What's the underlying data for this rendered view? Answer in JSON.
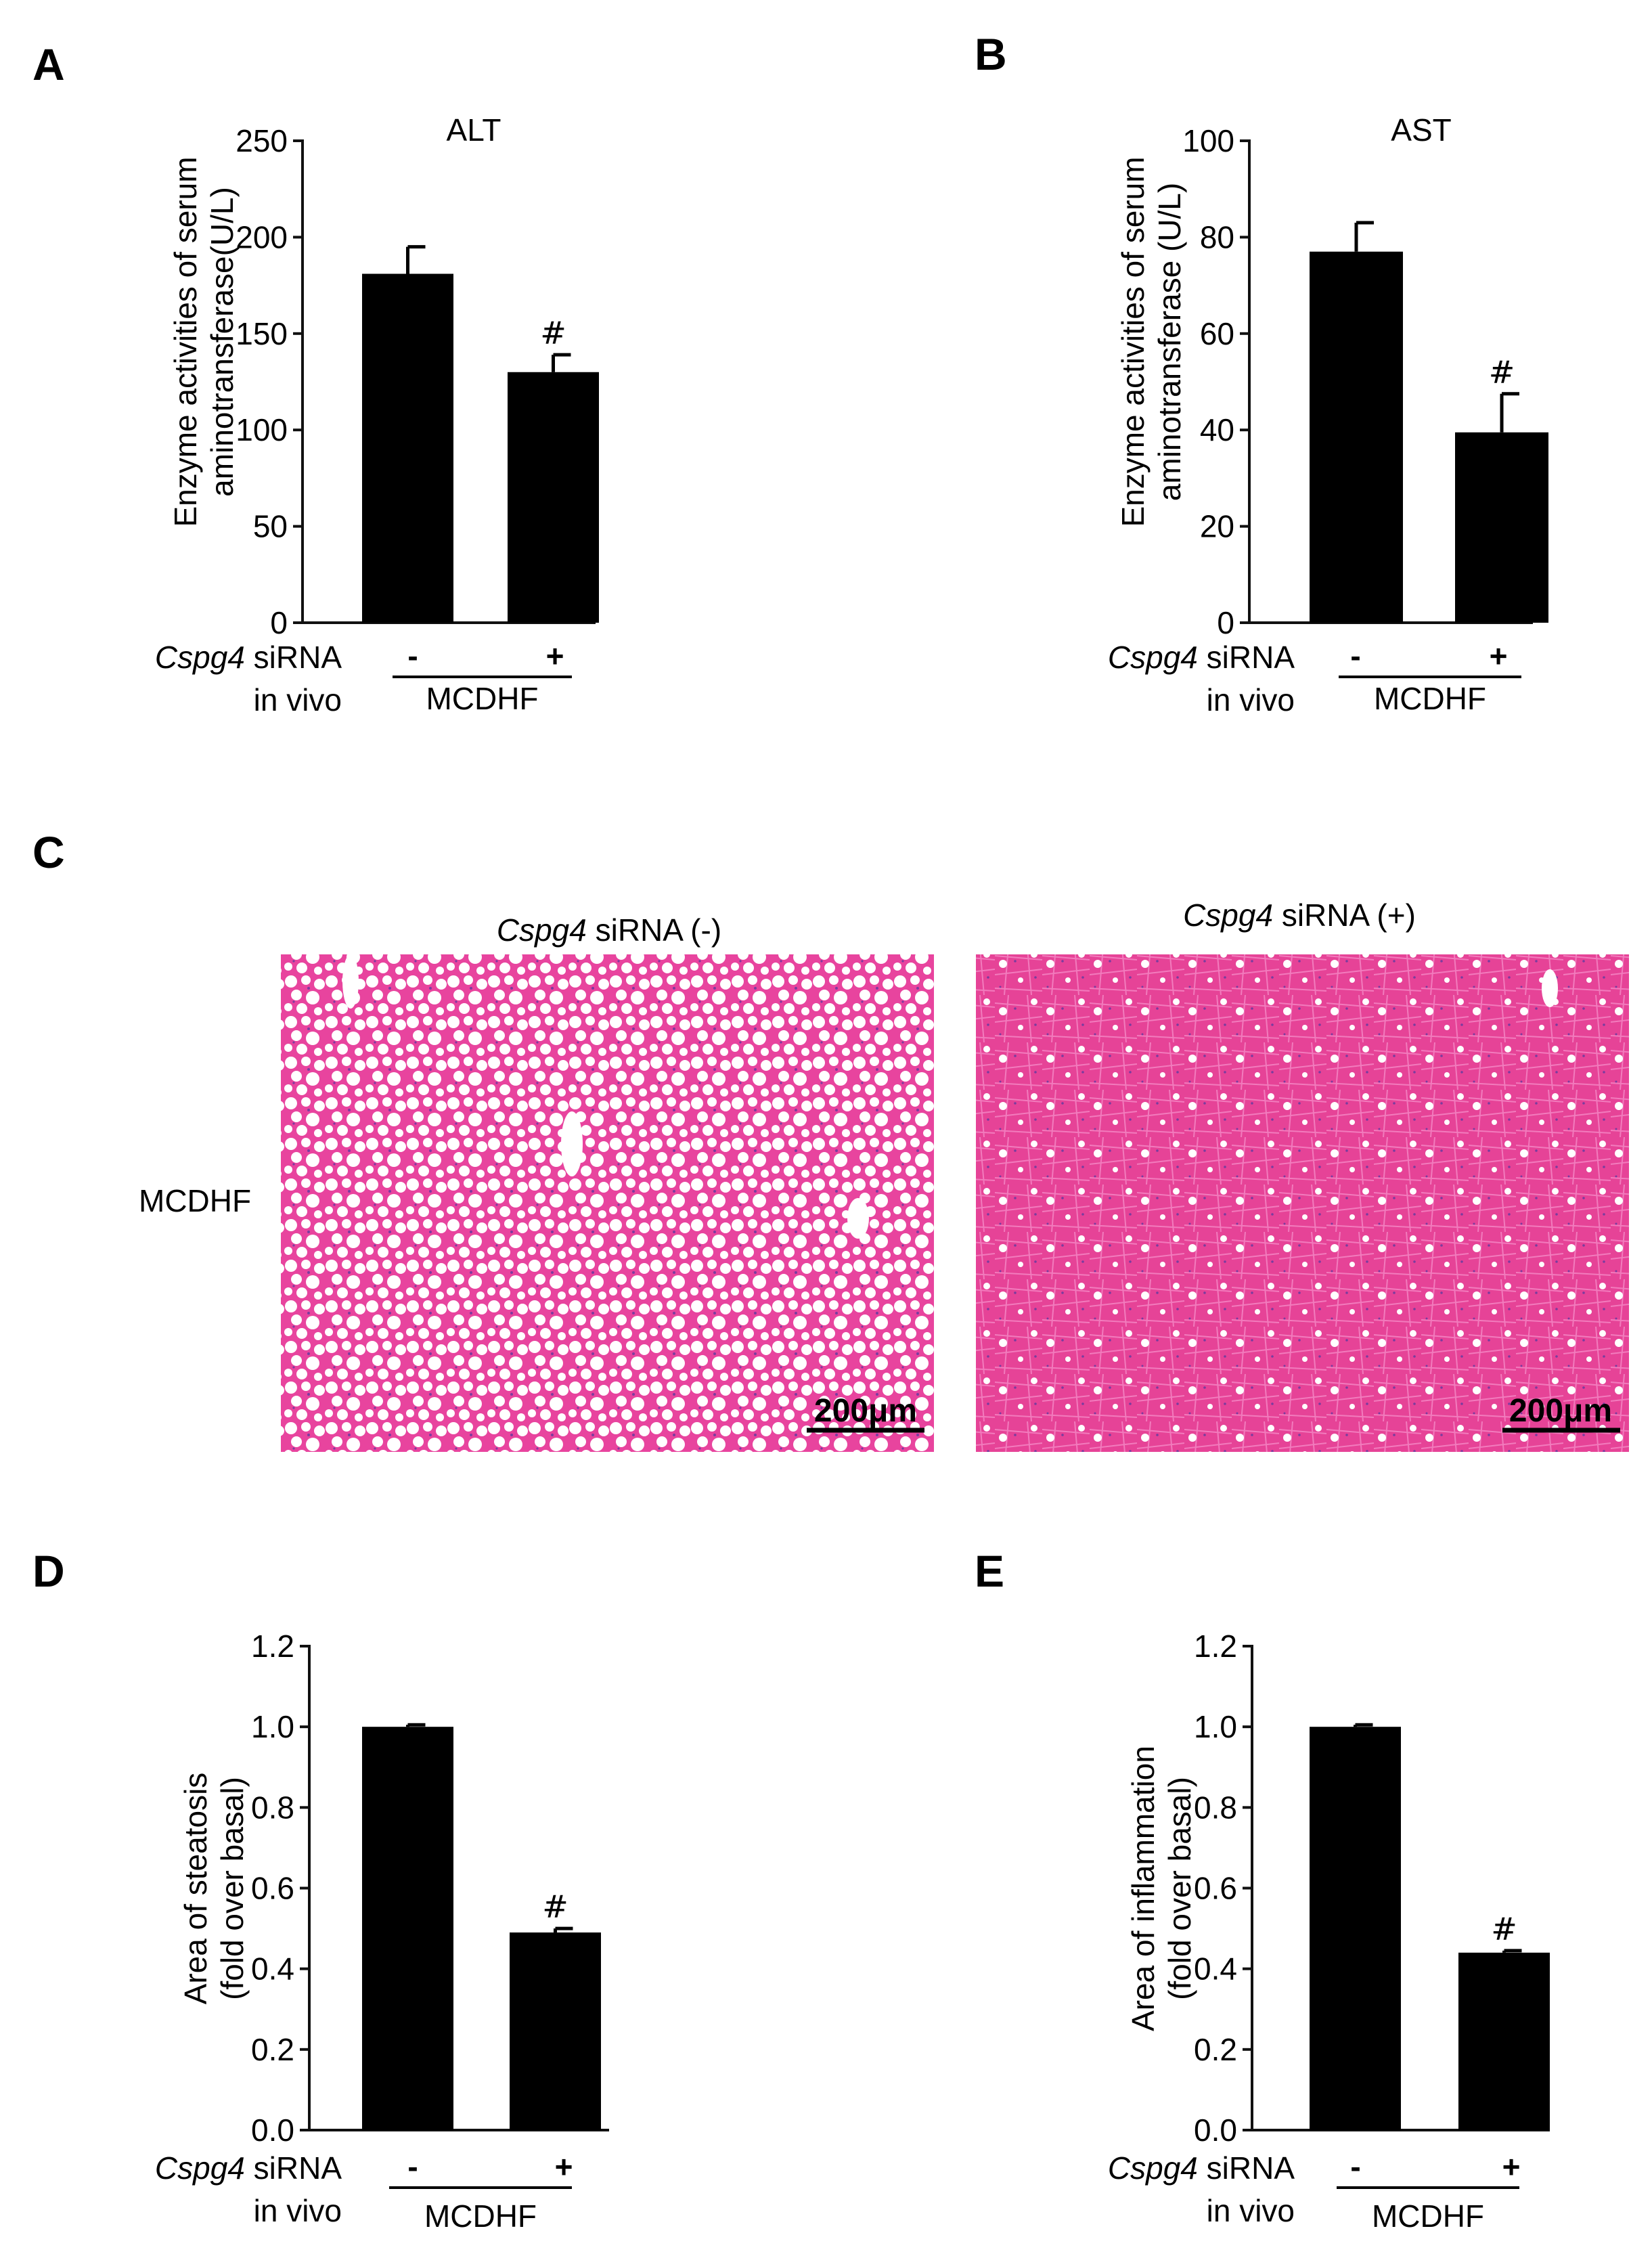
{
  "colors": {
    "bar": "#000000",
    "axis": "#111111",
    "stain": "#e8449e",
    "stain_dark": "#d62b86",
    "vacuole": "#ffffff"
  },
  "shared": {
    "treatment_gene": "Cspg4",
    "treatment_rest": " siRNA",
    "treatment_line2": "in vivo",
    "group_label": "MCDHF",
    "minus": "-",
    "plus": "+",
    "sig_mark": "#"
  },
  "panels": {
    "A": {
      "letter": "A"
    },
    "B": {
      "letter": "B"
    },
    "C": {
      "letter": "C",
      "row_label": "MCDHF",
      "col1_gene": "Cspg4",
      "col1_rest": " siRNA (-)",
      "col2_gene": "Cspg4",
      "col2_rest": " siRNA (+)",
      "scalebar": "200μm"
    },
    "D": {
      "letter": "D"
    },
    "E": {
      "letter": "E"
    }
  },
  "chart_data": [
    {
      "panel": "A",
      "type": "bar",
      "title": "ALT",
      "ylabel_lines": [
        "Enzyme activities of serum",
        "aminotransferase(U/L)"
      ],
      "categories": [
        "-",
        "+"
      ],
      "values": [
        181,
        130
      ],
      "errors": [
        14,
        9
      ],
      "significance": [
        "",
        "#"
      ],
      "ylim": [
        0,
        250
      ],
      "yticks": [
        "0",
        "50",
        "100",
        "150",
        "200",
        "250"
      ]
    },
    {
      "panel": "B",
      "type": "bar",
      "title": "AST",
      "ylabel_lines": [
        "Enzyme activities of serum",
        "aminotransferase (U/L)"
      ],
      "categories": [
        "-",
        "+"
      ],
      "values": [
        77,
        39.5
      ],
      "errors": [
        6,
        8
      ],
      "significance": [
        "",
        "#"
      ],
      "ylim": [
        0,
        100
      ],
      "yticks": [
        "0",
        "20",
        "40",
        "60",
        "80",
        "100"
      ]
    },
    {
      "panel": "D",
      "type": "bar",
      "title": "",
      "ylabel_lines": [
        "Area of steatosis",
        "(fold over basal)"
      ],
      "categories": [
        "-",
        "+"
      ],
      "values": [
        1.0,
        0.49
      ],
      "errors": [
        0.005,
        0.01
      ],
      "significance": [
        "",
        "#"
      ],
      "ylim": [
        0,
        1.2
      ],
      "yticks": [
        "0.0",
        "0.2",
        "0.4",
        "0.6",
        "0.8",
        "1.0",
        "1.2"
      ]
    },
    {
      "panel": "E",
      "type": "bar",
      "title": "",
      "ylabel_lines": [
        "Area of inflammation",
        "(fold over basal)"
      ],
      "categories": [
        "-",
        "+"
      ],
      "values": [
        1.0,
        0.44
      ],
      "errors": [
        0.005,
        0.005
      ],
      "significance": [
        "",
        "#"
      ],
      "ylim": [
        0,
        1.2
      ],
      "yticks": [
        "0.0",
        "0.2",
        "0.4",
        "0.6",
        "0.8",
        "1.0",
        "1.2"
      ]
    }
  ]
}
